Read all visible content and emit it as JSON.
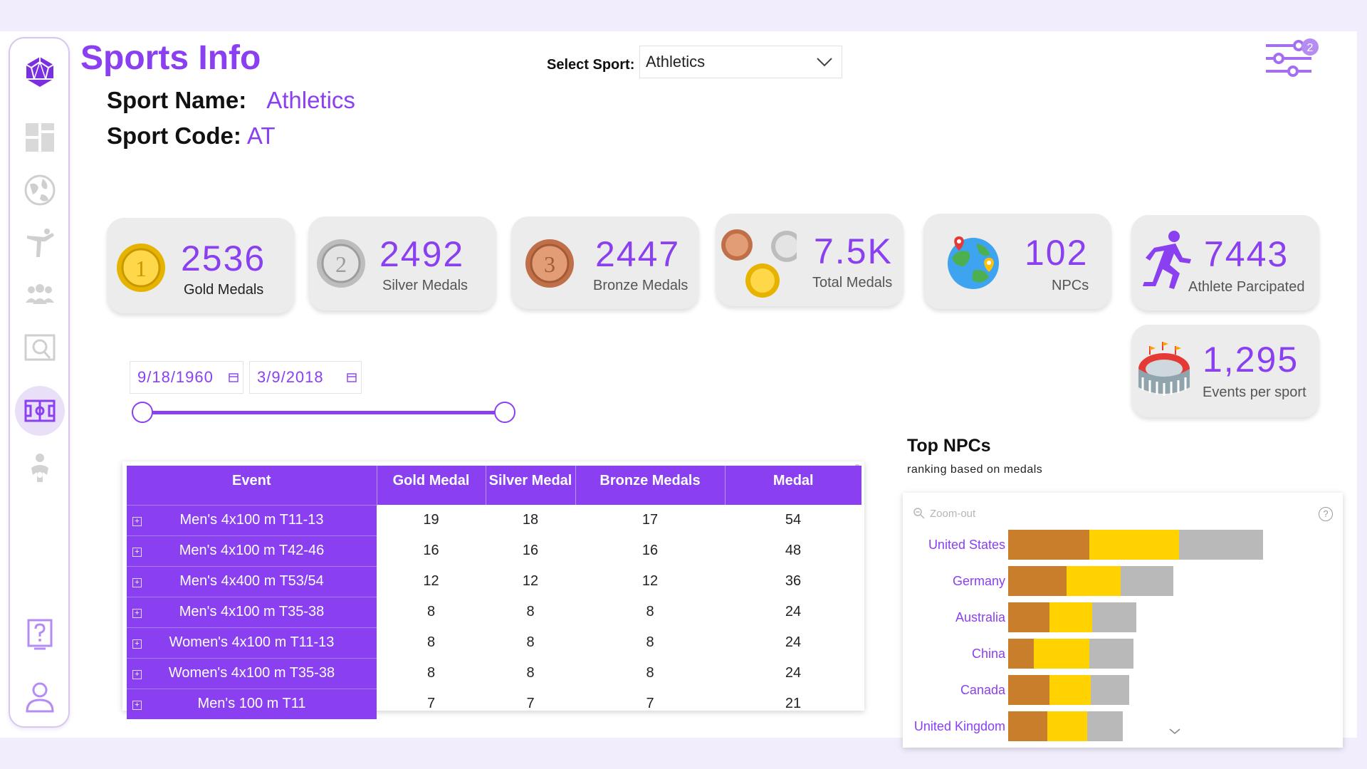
{
  "app": {
    "title": "Sports Info"
  },
  "sport": {
    "name_label": "Sport Name:",
    "name_value": "Athletics",
    "code_label": "Sport Code:",
    "code_value": "AT"
  },
  "select": {
    "label": "Select Sport:",
    "value": "Athletics"
  },
  "filter": {
    "badge": "2"
  },
  "sidebar": {
    "items": [
      {
        "icon": "logo-icon"
      },
      {
        "icon": "dashboard-icon"
      },
      {
        "icon": "globe-icon"
      },
      {
        "icon": "martial-arts-icon"
      },
      {
        "icon": "team-icon"
      },
      {
        "icon": "search-map-icon"
      },
      {
        "icon": "field-icon",
        "active": true
      },
      {
        "icon": "athlete-icon"
      },
      {
        "icon": "help-icon"
      },
      {
        "icon": "user-icon"
      }
    ]
  },
  "kpis": {
    "gold": {
      "value": "2536",
      "label": "Gold Medals"
    },
    "silver": {
      "value": "2492",
      "label": "Silver Medals"
    },
    "bronze": {
      "value": "2447",
      "label": "Bronze Medals"
    },
    "total": {
      "value": "7.5K",
      "label": "Total Medals"
    },
    "npcs": {
      "value": "102",
      "label": "NPCs"
    },
    "athletes": {
      "value": "7443",
      "label": "Athlete Parcipated"
    },
    "events": {
      "value": "1,295",
      "label": "Events per sport"
    }
  },
  "date_range": {
    "start": "9/18/1960",
    "end": "3/9/2018"
  },
  "table": {
    "headers": [
      "Event",
      "Gold Medal",
      "Silver Medal",
      "Bronze Medals",
      "Medal"
    ],
    "rows": [
      {
        "event": "Men's 4x100 m T11-13",
        "gold": "19",
        "silver": "18",
        "bronze": "17",
        "medal": "54"
      },
      {
        "event": "Men's 4x100 m T42-46",
        "gold": "16",
        "silver": "16",
        "bronze": "16",
        "medal": "48"
      },
      {
        "event": "Men's 4x400 m T53/54",
        "gold": "12",
        "silver": "12",
        "bronze": "12",
        "medal": "36"
      },
      {
        "event": "Men's 4x100 m T35-38",
        "gold": "8",
        "silver": "8",
        "bronze": "8",
        "medal": "24"
      },
      {
        "event": "Women's 4x100 m T11-13",
        "gold": "8",
        "silver": "8",
        "bronze": "8",
        "medal": "24"
      },
      {
        "event": "Women's 4x100 m T35-38",
        "gold": "8",
        "silver": "8",
        "bronze": "8",
        "medal": "24"
      },
      {
        "event": "Men's 100 m T11",
        "gold": "7",
        "silver": "7",
        "bronze": "7",
        "medal": "21"
      }
    ]
  },
  "npc_chart": {
    "title": "Top NPCs",
    "subtitle": "ranking based on medals",
    "zoom_label": "Zoom-out",
    "help": "?"
  },
  "colors": {
    "accent": "#8a3ff0",
    "bronze": "#c97e2c",
    "gold": "#ffd200",
    "silver": "#b9b9b9"
  },
  "chart_data": {
    "type": "bar",
    "orientation": "horizontal",
    "stacked": true,
    "categories": [
      "United States",
      "Germany",
      "Australia",
      "China",
      "Canada",
      "United Kingdom"
    ],
    "series": [
      {
        "values": [
          114,
          82,
          58,
          36,
          58,
          55
        ]
      },
      {
        "values": [
          126,
          76,
          60,
          78,
          58,
          56
        ]
      },
      {
        "values": [
          118,
          74,
          62,
          62,
          54,
          50
        ]
      }
    ],
    "title": "Top NPCs",
    "subtitle": "ranking based on medals",
    "xlabel": "",
    "ylabel": ""
  }
}
